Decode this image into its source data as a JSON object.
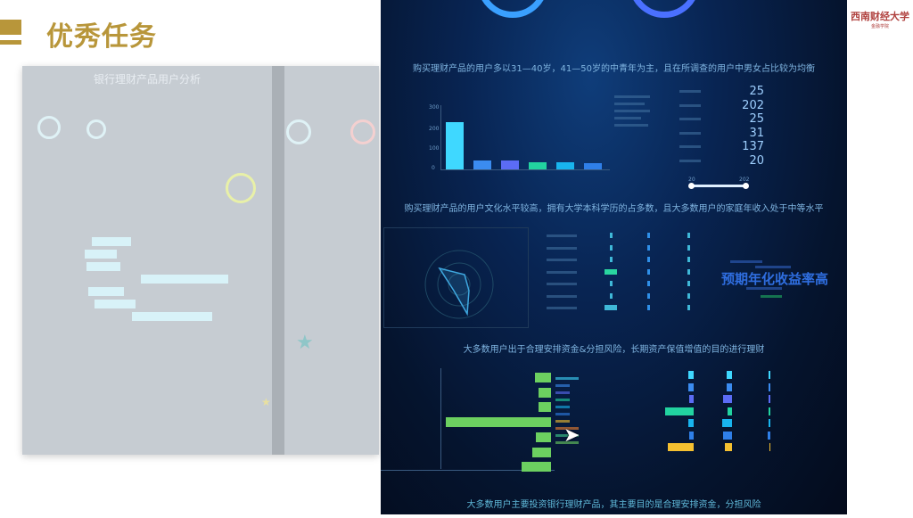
{
  "slide": {
    "title": "优秀任务",
    "logo_text": "财经大学",
    "accent": "#b8963a"
  },
  "faded_panel": {
    "title": "银行理财产品用户分析"
  },
  "dashboard": {
    "captions": [
      "购买理财产品的用户多以31—40岁，41—50岁的中青年为主，且在所调查的用户中男女占比较为均衡",
      "购买理财产品的用户文化水平较高，拥有大学本科学历的占多数，且大多数用户的家庭年收入处于中等水平",
      "大多数用户出于合理安排资金&分担风险，长期资产保值增值的目的进行理财",
      "大多数用户主要投资银行理财产品，其主要目的是合理安排资金，分担风险"
    ],
    "education_chart": {
      "type": "bar",
      "ylim": [
        0,
        300
      ],
      "yticks": [
        "0",
        "100",
        "200",
        "300"
      ],
      "values": [
        220,
        40,
        40,
        35,
        35,
        30
      ],
      "colors": [
        "#3fd8ff",
        "#3b8cf0",
        "#5b6cf5",
        "#22d3a0",
        "#18b4ee",
        "#2f7fe8"
      ]
    },
    "income_table": {
      "values": [
        "25",
        "202",
        "25",
        "31",
        "137",
        "20"
      ],
      "slider_min": "20",
      "slider_max": "202"
    },
    "word_cloud": {
      "main": "预期年化收益率高"
    },
    "investment_chart": {
      "values": [
        15,
        12,
        12,
        100,
        14,
        18,
        28
      ]
    },
    "purpose_chart": {
      "values": [
        [
          8,
          8,
          3
        ],
        [
          8,
          8,
          3
        ],
        [
          6,
          12,
          3
        ],
        [
          40,
          6,
          3
        ],
        [
          8,
          14,
          2
        ],
        [
          6,
          12,
          4
        ],
        [
          36,
          10,
          1
        ]
      ]
    }
  }
}
